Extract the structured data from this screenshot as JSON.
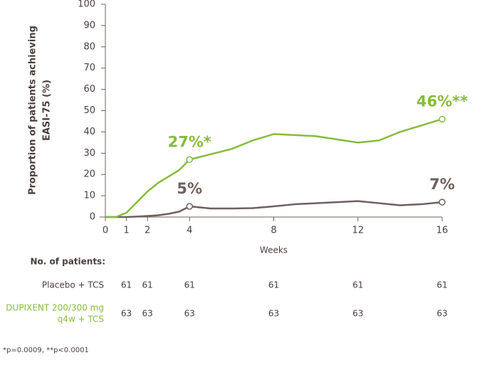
{
  "chart_data": {
    "type": "line",
    "ylabel": [
      "Proportion of patients achieving",
      "EASI-75 (%)"
    ],
    "xlabel": "Weeks",
    "x": [
      0,
      0.5,
      1,
      1.5,
      2,
      2.5,
      3,
      3.5,
      4,
      5,
      6,
      7,
      8,
      9,
      10,
      11,
      12,
      13,
      14,
      15,
      16
    ],
    "series": [
      {
        "name": "DUPIXENT 200/300 mg q4w + TCS",
        "color": "#86bc3d",
        "values": [
          0,
          0,
          2,
          7,
          12,
          16,
          19,
          22,
          27,
          29.5,
          32,
          36,
          39,
          38.5,
          38,
          36.5,
          35,
          36,
          40,
          43,
          46
        ],
        "value_labels": [
          null,
          null,
          null,
          null,
          null,
          null,
          null,
          null,
          "27%*",
          null,
          null,
          null,
          null,
          null,
          null,
          null,
          null,
          null,
          null,
          null,
          "46%**"
        ]
      },
      {
        "name": "Placebo + TCS",
        "color": "#6e605c",
        "values": [
          0,
          0,
          0,
          0.2,
          0.5,
          0.8,
          1.5,
          2.5,
          5,
          4,
          4,
          4.2,
          5,
          6,
          6.5,
          7,
          7.5,
          6.5,
          5.5,
          6,
          7
        ],
        "value_labels": [
          null,
          null,
          null,
          null,
          null,
          null,
          null,
          null,
          "5%",
          null,
          null,
          null,
          null,
          null,
          null,
          null,
          null,
          null,
          null,
          null,
          "7%"
        ]
      }
    ],
    "xlim": [
      0,
      16
    ],
    "xticks": [
      0,
      1,
      2,
      4,
      8,
      12,
      16
    ],
    "ylim": [
      0,
      100
    ],
    "yticks": [
      0,
      10,
      20,
      30,
      40,
      50,
      60,
      70,
      80,
      90,
      100
    ]
  },
  "table": {
    "title": "No. of patients:",
    "rows": [
      {
        "label": [
          "Placebo + TCS"
        ],
        "counts": [
          61,
          61,
          61,
          61,
          61,
          61
        ]
      },
      {
        "label": [
          "DUPIXENT 200/300 mg",
          "q4w + TCS"
        ],
        "counts": [
          63,
          63,
          63,
          63,
          63,
          63
        ]
      }
    ]
  },
  "footnote": "*p=0.0009, **p<0.0001"
}
